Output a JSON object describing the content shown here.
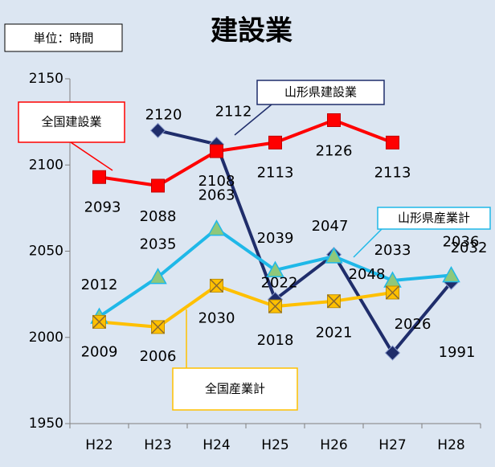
{
  "chart_data": {
    "type": "line",
    "title": "建設業",
    "unit_label": "単位：時間",
    "categories": [
      "H22",
      "H23",
      "H24",
      "H25",
      "H26",
      "H27",
      "H28"
    ],
    "ylim": [
      1950,
      2150
    ],
    "yticks": [
      1950,
      2000,
      2050,
      2100,
      2150
    ],
    "grid": false,
    "series": [
      {
        "name": "山形県建設業",
        "color": "#1f2d6b",
        "marker": "diamond",
        "values": [
          null,
          2120,
          2112,
          2022,
          2048,
          1991,
          2032
        ]
      },
      {
        "name": "全国建設業",
        "color": "#ff0000",
        "marker": "square",
        "values": [
          2093,
          2088,
          2108,
          2113,
          2126,
          2113,
          null
        ]
      },
      {
        "name": "山形県産業計",
        "color": "#1fb8e8",
        "marker": "triangle",
        "values": [
          2012,
          2035,
          2063,
          2039,
          2047,
          2033,
          2036
        ]
      },
      {
        "name": "全国産業計",
        "color": "#ffc000",
        "marker": "x-square",
        "values": [
          2009,
          2006,
          2030,
          2018,
          2021,
          2026,
          null
        ]
      }
    ]
  }
}
